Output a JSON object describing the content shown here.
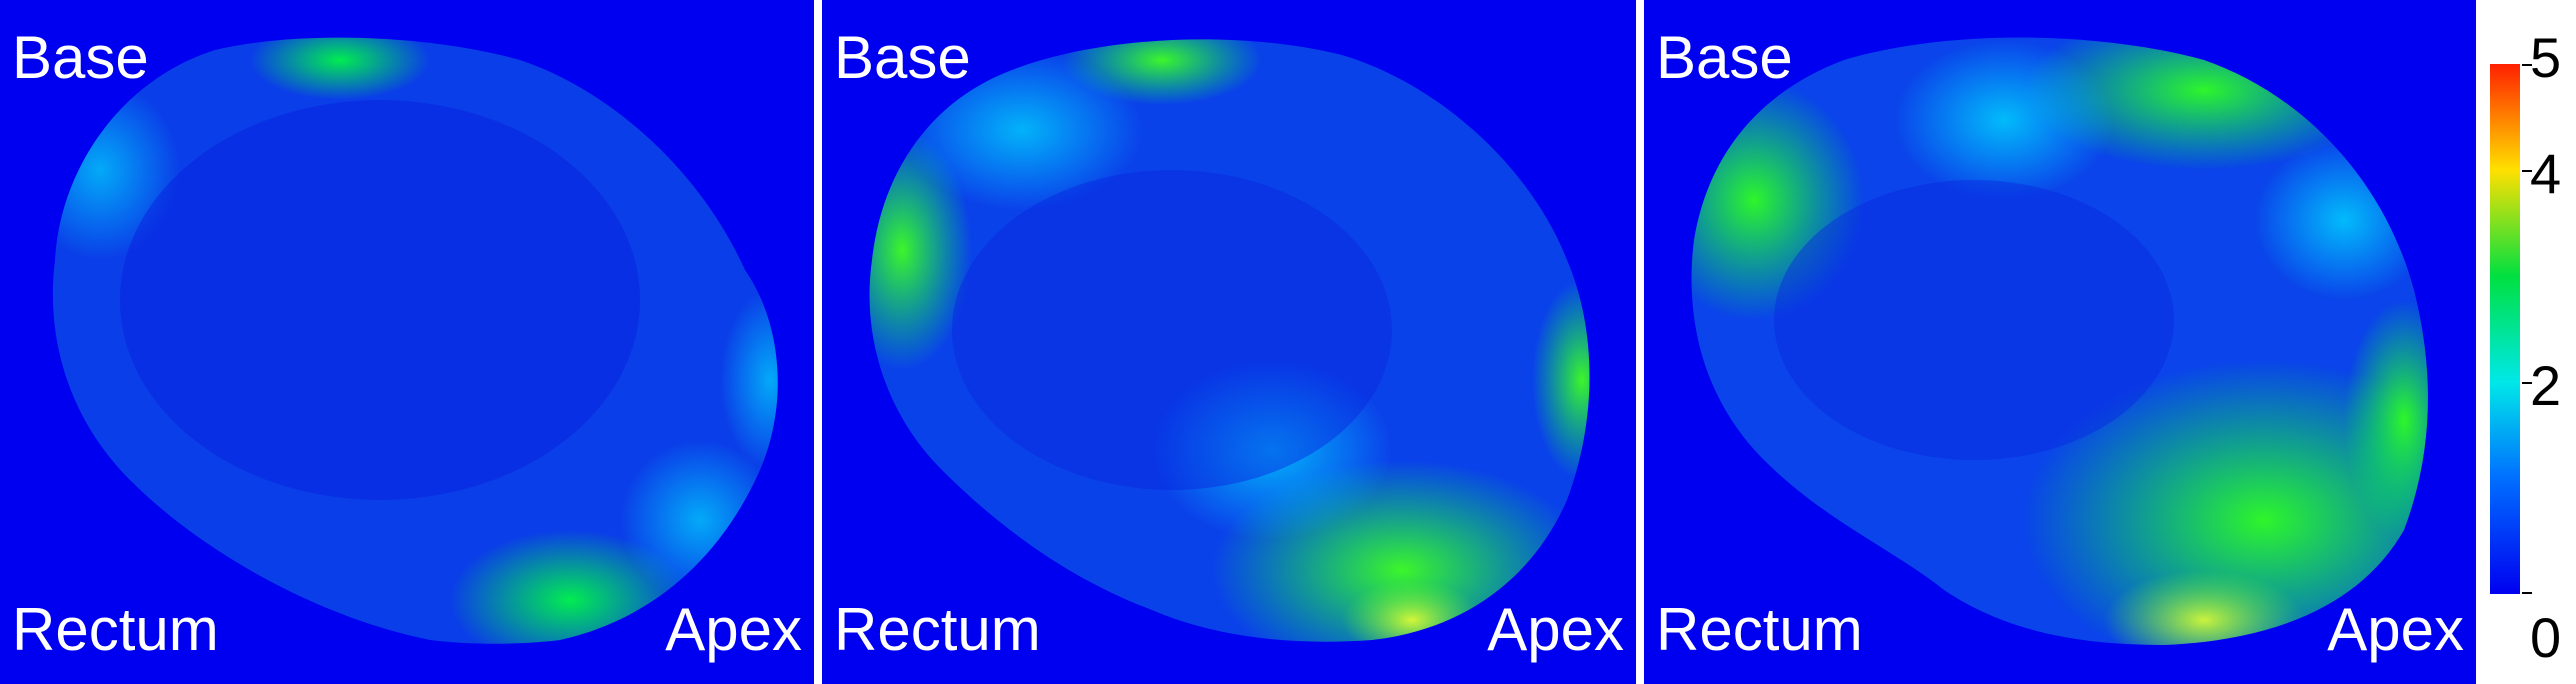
{
  "panels": [
    {
      "label_base": "Base",
      "label_rectum": "Rectum",
      "label_apex": "Apex"
    },
    {
      "label_base": "Base",
      "label_rectum": "Rectum",
      "label_apex": "Apex"
    },
    {
      "label_base": "Base",
      "label_rectum": "Rectum",
      "label_apex": "Apex"
    }
  ],
  "colorbar": {
    "ticks": [
      "5",
      "4",
      "2",
      "0"
    ],
    "colors": {
      "low": "#0000f0",
      "mid_low": "#00c8ff",
      "mid": "#00e040",
      "mid_high": "#ffe000",
      "high": "#ff2000"
    }
  }
}
